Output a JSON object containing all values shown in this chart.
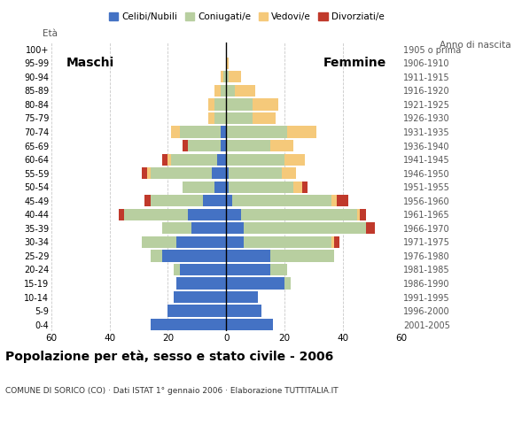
{
  "age_groups": [
    "0-4",
    "5-9",
    "10-14",
    "15-19",
    "20-24",
    "25-29",
    "30-34",
    "35-39",
    "40-44",
    "45-49",
    "50-54",
    "55-59",
    "60-64",
    "65-69",
    "70-74",
    "75-79",
    "80-84",
    "85-89",
    "90-94",
    "95-99",
    "100+"
  ],
  "birth_years": [
    "2001-2005",
    "1996-2000",
    "1991-1995",
    "1986-1990",
    "1981-1985",
    "1976-1980",
    "1971-1975",
    "1966-1970",
    "1961-1965",
    "1956-1960",
    "1951-1955",
    "1946-1950",
    "1941-1945",
    "1936-1940",
    "1931-1935",
    "1926-1930",
    "1921-1925",
    "1916-1920",
    "1911-1915",
    "1906-1910",
    "1905 o prima"
  ],
  "colors": {
    "celibe": "#4472c4",
    "coniugato": "#b8cfa0",
    "vedovo": "#f5c97a",
    "divorziato": "#c0392b"
  },
  "males": {
    "celibe": [
      26,
      20,
      18,
      17,
      16,
      22,
      17,
      12,
      13,
      8,
      4,
      5,
      3,
      2,
      2,
      0,
      0,
      0,
      0,
      0,
      0
    ],
    "coniugato": [
      0,
      0,
      0,
      0,
      2,
      4,
      12,
      10,
      22,
      18,
      11,
      21,
      16,
      11,
      14,
      4,
      4,
      2,
      1,
      0,
      0
    ],
    "vedovo": [
      0,
      0,
      0,
      0,
      0,
      0,
      0,
      0,
      0,
      0,
      0,
      1,
      1,
      0,
      3,
      2,
      2,
      2,
      1,
      0,
      0
    ],
    "divorziato": [
      0,
      0,
      0,
      0,
      0,
      0,
      0,
      0,
      2,
      2,
      0,
      2,
      2,
      2,
      0,
      0,
      0,
      0,
      0,
      0,
      0
    ]
  },
  "females": {
    "nubile": [
      16,
      12,
      11,
      20,
      15,
      15,
      6,
      6,
      5,
      2,
      1,
      1,
      0,
      0,
      0,
      0,
      0,
      0,
      0,
      0,
      0
    ],
    "coniugata": [
      0,
      0,
      0,
      2,
      6,
      22,
      30,
      42,
      40,
      34,
      22,
      18,
      20,
      15,
      21,
      9,
      9,
      3,
      1,
      0,
      0
    ],
    "vedova": [
      0,
      0,
      0,
      0,
      0,
      0,
      1,
      0,
      1,
      2,
      3,
      5,
      7,
      8,
      10,
      8,
      9,
      7,
      4,
      1,
      0
    ],
    "divorziata": [
      0,
      0,
      0,
      0,
      0,
      0,
      2,
      3,
      2,
      4,
      2,
      0,
      0,
      0,
      0,
      0,
      0,
      0,
      0,
      0,
      0
    ]
  },
  "xlim": 60,
  "title": "Popolazione per età, sesso e stato civile - 2006",
  "subtitle": "COMUNE DI SORICO (CO) · Dati ISTAT 1° gennaio 2006 · Elaborazione TUTTITALIA.IT",
  "ylabel_left": "Età",
  "ylabel_right": "Anno di nascita",
  "xlabel_left": "Maschi",
  "xlabel_right": "Femmine",
  "legend_labels": [
    "Celibi/Nubili",
    "Coniugati/e",
    "Vedovi/e",
    "Divorziati/e"
  ],
  "background_color": "#ffffff",
  "grid_color": "#bbbbbb"
}
